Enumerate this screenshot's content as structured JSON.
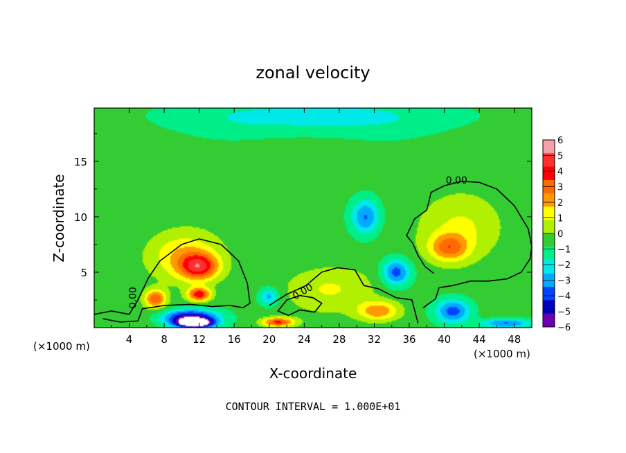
{
  "chart_data": {
    "type": "heatmap",
    "title": "zonal velocity",
    "xlabel": "X-coordinate",
    "ylabel": "Z-coordinate",
    "x_unit_left": "(×1000 m)",
    "x_unit_right": "(×1000 m)",
    "footer": "CONTOUR INTERVAL = 1.000E+01",
    "xlim": [
      0,
      50
    ],
    "ylim": [
      0,
      19.8
    ],
    "x_ticks": [
      4,
      8,
      12,
      16,
      20,
      24,
      28,
      32,
      36,
      40,
      44,
      48
    ],
    "y_ticks": [
      5,
      10,
      15
    ],
    "colorbar": {
      "min": -6,
      "max": 6,
      "ticks": [
        6,
        5,
        4,
        3,
        2,
        1,
        0,
        -1,
        -2,
        -3,
        -4,
        -5,
        -6
      ],
      "tick_labels": [
        "6",
        "5",
        "4",
        "3",
        "2",
        "1",
        "0",
        "−1",
        "−2",
        "−3",
        "−4",
        "−5",
        "−6"
      ],
      "colors": [
        "#f4a0a6",
        "#ff3030",
        "#ff0000",
        "#ff6a00",
        "#ff9900",
        "#ffff00",
        "#b0f000",
        "#33cc33",
        "#00ee88",
        "#00e8e8",
        "#00aaff",
        "#0044ff",
        "#0000bb",
        "#6a00b0"
      ]
    },
    "background_value": -0.6,
    "upper_band": {
      "value": -2.3,
      "z": 19,
      "x_center": 25,
      "x_half": 16,
      "z_half": 1.6
    },
    "features": [
      {
        "x": 12,
        "z": 5.5,
        "value": 4.6,
        "sx": 2.2,
        "sz": 1.2
      },
      {
        "x": 12,
        "z": 3.0,
        "value": 5.0,
        "sx": 1.3,
        "sz": 0.6
      },
      {
        "x": 7,
        "z": 2.6,
        "value": 4.2,
        "sx": 1.2,
        "sz": 0.8
      },
      {
        "x": 10,
        "z": 6.5,
        "value": 2.4,
        "sx": 4,
        "sz": 2.2
      },
      {
        "x": 11,
        "z": 0.9,
        "value": -5.4,
        "sx": 3,
        "sz": 0.7
      },
      {
        "x": 11.5,
        "z": 0.4,
        "value": -7.5,
        "sx": 2,
        "sz": 0.4
      },
      {
        "x": 31,
        "z": 10,
        "value": -3.2,
        "sx": 1.6,
        "sz": 1.6
      },
      {
        "x": 34.5,
        "z": 5,
        "value": -3.6,
        "sx": 1.6,
        "sz": 1.2
      },
      {
        "x": 40.5,
        "z": 7.2,
        "value": 3.2,
        "sx": 2.2,
        "sz": 1.2
      },
      {
        "x": 42,
        "z": 9,
        "value": 1.8,
        "sx": 4.5,
        "sz": 3.0
      },
      {
        "x": 41,
        "z": 1.5,
        "value": -3.6,
        "sx": 2,
        "sz": 1.1
      },
      {
        "x": 32.5,
        "z": 1.5,
        "value": 3.2,
        "sx": 2.4,
        "sz": 0.9
      },
      {
        "x": 27,
        "z": 3.5,
        "value": 1.6,
        "sx": 5,
        "sz": 2.0
      },
      {
        "x": 21,
        "z": 0.5,
        "value": 4.5,
        "sx": 1.8,
        "sz": 0.4
      },
      {
        "x": 20,
        "z": 2.8,
        "value": -2.5,
        "sx": 1.1,
        "sz": 0.8
      },
      {
        "x": 47,
        "z": 0.4,
        "value": -3.2,
        "sx": 3,
        "sz": 0.4
      }
    ],
    "contour_label": "0.00",
    "contours": [
      {
        "value": 0,
        "closed": false,
        "points": [
          [
            0,
            1.2
          ],
          [
            2,
            1.5
          ],
          [
            4,
            1.2
          ],
          [
            5,
            2.5
          ],
          [
            6.2,
            4.5
          ],
          [
            7.5,
            6
          ],
          [
            10,
            7.5
          ],
          [
            12,
            8
          ],
          [
            14.5,
            7.5
          ],
          [
            16.5,
            6
          ],
          [
            17.5,
            4
          ],
          [
            17.8,
            2.2
          ],
          [
            17,
            1.8
          ],
          [
            15.5,
            2
          ],
          [
            13.5,
            1.9
          ],
          [
            11,
            2.1
          ],
          [
            8,
            2
          ],
          [
            5.5,
            1.7
          ],
          [
            5,
            0.6
          ],
          [
            3,
            0.5
          ],
          [
            1,
            0.8
          ]
        ]
      },
      {
        "value": 0,
        "closed": false,
        "points": [
          [
            20,
            2
          ],
          [
            22,
            3
          ],
          [
            24.2,
            3.8
          ],
          [
            26,
            5
          ],
          [
            27.8,
            5.4
          ],
          [
            29.8,
            5.2
          ],
          [
            30.8,
            3.8
          ],
          [
            32.5,
            3.5
          ],
          [
            34.5,
            2.7
          ],
          [
            36.3,
            2.5
          ],
          [
            37,
            0.4
          ]
        ]
      },
      {
        "value": 0,
        "closed": false,
        "points": [
          [
            37.6,
            1.8
          ],
          [
            39,
            2.6
          ],
          [
            39.4,
            3.6
          ],
          [
            41,
            3.8
          ],
          [
            43,
            4.2
          ],
          [
            45,
            4.2
          ],
          [
            47.2,
            4.4
          ],
          [
            48.8,
            5
          ],
          [
            49.8,
            6.2
          ],
          [
            50,
            7.3
          ],
          [
            49.6,
            8.9
          ],
          [
            48,
            11
          ],
          [
            46,
            12.5
          ],
          [
            44,
            13.1
          ],
          [
            42,
            13.2
          ],
          [
            40,
            12.8
          ],
          [
            38.5,
            12.2
          ],
          [
            38,
            10.6
          ],
          [
            36.6,
            9.8
          ],
          [
            35.7,
            8.3
          ],
          [
            36.4,
            7.6
          ],
          [
            37,
            6.5
          ],
          [
            37.8,
            5.5
          ],
          [
            38.8,
            4.9
          ]
        ]
      },
      {
        "value": 0,
        "closed": true,
        "points": [
          [
            21,
            1.5
          ],
          [
            22,
            2.5
          ],
          [
            23.5,
            2.9
          ],
          [
            25,
            2.7
          ],
          [
            26,
            2.2
          ],
          [
            25.2,
            1.4
          ],
          [
            23.5,
            1.6
          ],
          [
            22.2,
            1.1
          ]
        ]
      }
    ]
  }
}
